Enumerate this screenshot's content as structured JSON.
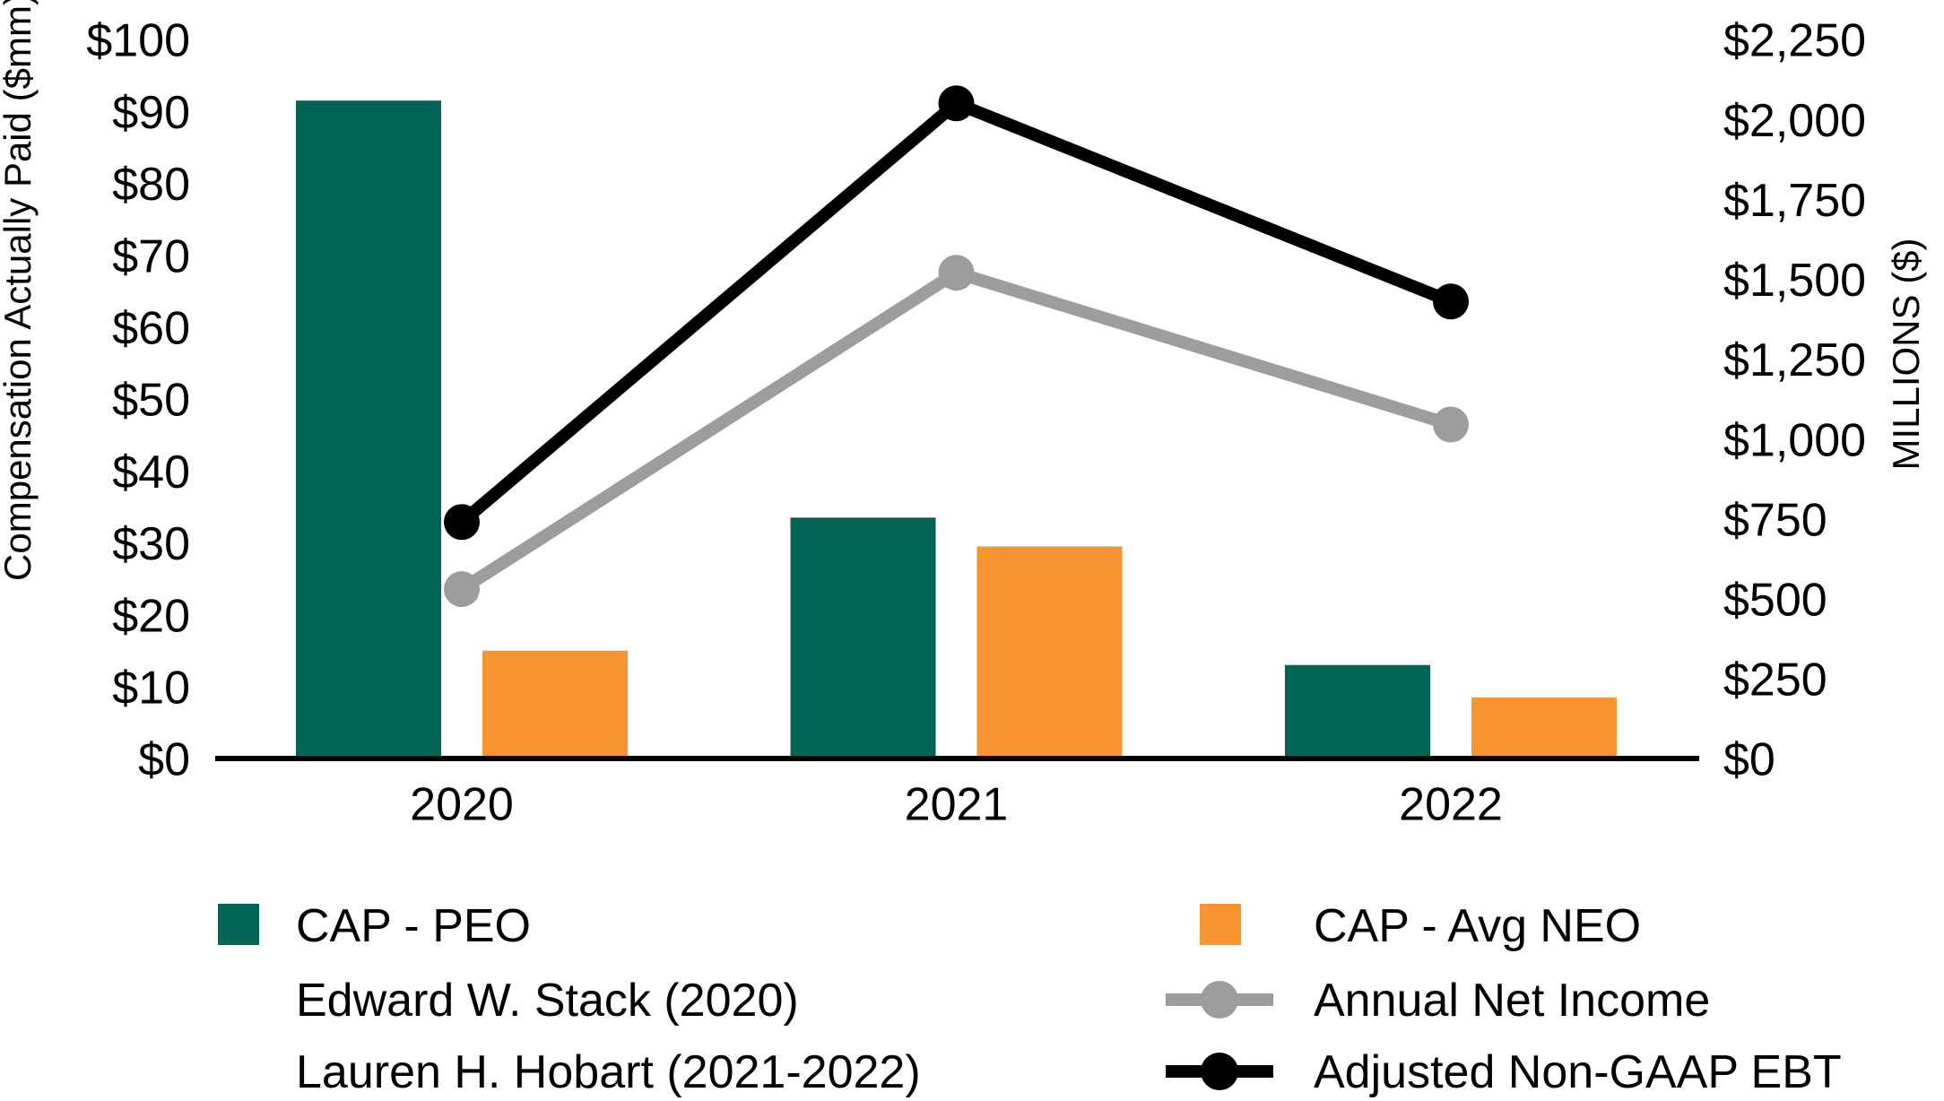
{
  "chart_data": {
    "type": "combo-bar-line",
    "title": "",
    "categories": [
      "2020",
      "2021",
      "2022"
    ],
    "bar_series": [
      {
        "name": "CAP - PEO",
        "note_lines": [
          "Edward W. Stack (2020)",
          "Lauren H. Hobart (2021-2022)"
        ],
        "color": "#006554",
        "axis": "left",
        "values": [
          91.5,
          33.5,
          13
        ]
      },
      {
        "name": "CAP - Avg NEO",
        "color": "#F79631",
        "axis": "left",
        "values": [
          15,
          29.5,
          8.5
        ]
      }
    ],
    "line_series": [
      {
        "name": "Annual Net Income",
        "color": "#9D9D9F",
        "axis": "right",
        "values": [
          530,
          1520,
          1045
        ]
      },
      {
        "name": "Adjusted Non-GAAP EBT",
        "color": "#000000",
        "axis": "right",
        "values": [
          740,
          2050,
          1430
        ]
      }
    ],
    "left_axis": {
      "label": "Compensation Actually Paid ($mm)",
      "min": 0,
      "max": 100,
      "step": 10,
      "tick_prefix": "$"
    },
    "right_axis": {
      "label": "MILLIONS ($)",
      "min": 0,
      "max": 2250,
      "step": 250,
      "tick_prefix": "$"
    },
    "x_axis": {
      "labels": [
        "2020",
        "2021",
        "2022"
      ]
    },
    "legend_position": "bottom",
    "grid": false,
    "background": "#FFFFFF",
    "axis_line_color": "#000000"
  }
}
